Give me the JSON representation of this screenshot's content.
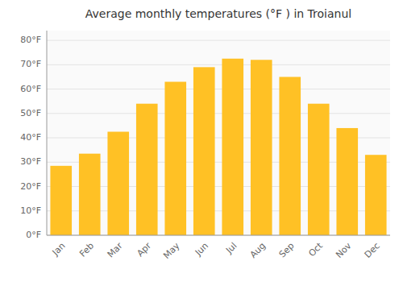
{
  "chart_data": {
    "type": "bar",
    "title": "Average monthly temperatures (°F ) in Troianul",
    "categories": [
      "Jan",
      "Feb",
      "Mar",
      "Apr",
      "May",
      "Jun",
      "Jul",
      "Aug",
      "Sep",
      "Oct",
      "Nov",
      "Dec"
    ],
    "values": [
      28.5,
      33.5,
      42.5,
      54,
      63,
      69,
      72.5,
      72,
      65,
      54,
      44,
      33
    ],
    "color": "#FFC125",
    "ylim": [
      0,
      84
    ],
    "yticks": [
      {
        "value": 0,
        "label": "0°F"
      },
      {
        "value": 10,
        "label": "10°F"
      },
      {
        "value": 20,
        "label": "20°F"
      },
      {
        "value": 30,
        "label": "30°F"
      },
      {
        "value": 40,
        "label": "40°F"
      },
      {
        "value": 50,
        "label": "50°F"
      },
      {
        "value": 60,
        "label": "60°F"
      },
      {
        "value": 70,
        "label": "70°F"
      },
      {
        "value": 80,
        "label": "80°F"
      }
    ],
    "grid": true
  }
}
